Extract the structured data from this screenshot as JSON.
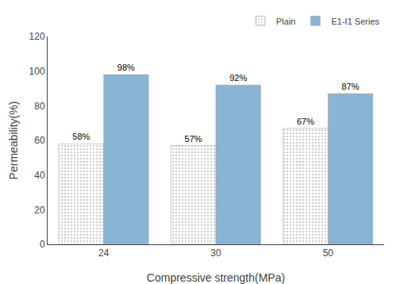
{
  "chart_data": {
    "type": "bar",
    "categories": [
      "24",
      "30",
      "50"
    ],
    "series": [
      {
        "name": "Plain",
        "color": "#f0f0f0",
        "values": [
          58,
          57,
          67
        ],
        "value_labels": [
          "58%",
          "57%",
          "67%"
        ]
      },
      {
        "name": "E1-I1 Series",
        "color": "#8ab4d4",
        "values": [
          98,
          92,
          87
        ],
        "value_labels": [
          "98%",
          "92%",
          "87%"
        ]
      }
    ],
    "xlabel": "Compressive strength(MPa)",
    "ylabel": "Permeability(%)",
    "ylim": [
      0,
      120
    ],
    "yticks": [
      0,
      20,
      40,
      60,
      80,
      100,
      120
    ],
    "grid": false,
    "legend": "upper right",
    "data_labels": true
  }
}
